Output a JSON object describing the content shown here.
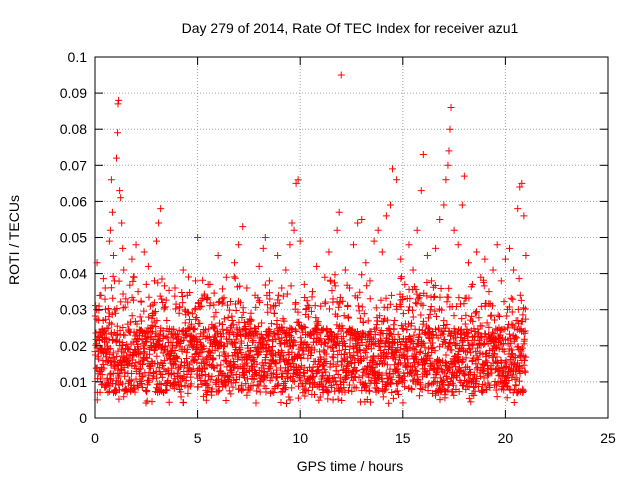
{
  "chart_data": {
    "type": "scatter",
    "title": "Day 279 of 2014, Rate Of TEC Index for receiver azu1",
    "xlabel": "GPS time / hours",
    "ylabel": "ROTI / TECUs",
    "xlim": [
      0,
      25
    ],
    "ylim": [
      0,
      0.1
    ],
    "xticks": [
      0,
      5,
      10,
      15,
      20,
      25
    ],
    "xtick_labels": [
      "0",
      "5",
      "10",
      "15",
      "20",
      "25"
    ],
    "yticks": [
      0,
      0.01,
      0.02,
      0.03,
      0.04,
      0.05,
      0.06,
      0.07,
      0.08,
      0.09,
      0.1
    ],
    "ytick_labels": [
      "0",
      "0.01",
      "0.02",
      "0.03",
      "0.04",
      "0.05",
      "0.06",
      "0.07",
      "0.08",
      "0.09",
      "0.1"
    ],
    "grid": true,
    "marker": "+",
    "color": "#ff0000",
    "x_range_of_data": [
      0,
      21
    ],
    "series": [
      {
        "points": [
          [
            0.1,
            0.043
          ],
          [
            0.2,
            0.031
          ],
          [
            0.3,
            0.018
          ],
          [
            0.35,
            0.012
          ],
          [
            0.4,
            0.027
          ],
          [
            0.5,
            0.036
          ],
          [
            0.55,
            0.022
          ],
          [
            0.6,
            0.011
          ],
          [
            0.7,
            0.049
          ],
          [
            0.75,
            0.052
          ],
          [
            0.8,
            0.066
          ],
          [
            0.85,
            0.057
          ],
          [
            0.9,
            0.045
          ],
          [
            0.95,
            0.038
          ],
          [
            1.0,
            0.029
          ],
          [
            1.05,
            0.072
          ],
          [
            1.1,
            0.079
          ],
          [
            1.12,
            0.087
          ],
          [
            1.15,
            0.088
          ],
          [
            1.2,
            0.063
          ],
          [
            1.25,
            0.061
          ],
          [
            1.3,
            0.054
          ],
          [
            1.35,
            0.047
          ],
          [
            1.4,
            0.041
          ],
          [
            1.5,
            0.033
          ],
          [
            1.6,
            0.026
          ],
          [
            1.7,
            0.019
          ],
          [
            1.8,
            0.044
          ],
          [
            1.9,
            0.039
          ],
          [
            2.0,
            0.048
          ],
          [
            2.1,
            0.035
          ],
          [
            2.2,
            0.028
          ],
          [
            2.4,
            0.046
          ],
          [
            2.5,
            0.037
          ],
          [
            2.6,
            0.042
          ],
          [
            2.7,
            0.031
          ],
          [
            2.8,
            0.024
          ],
          [
            2.9,
            0.038
          ],
          [
            3.0,
            0.049
          ],
          [
            3.1,
            0.054
          ],
          [
            3.2,
            0.058
          ],
          [
            3.3,
            0.032
          ],
          [
            3.5,
            0.027
          ],
          [
            3.7,
            0.021
          ],
          [
            3.9,
            0.036
          ],
          [
            4.1,
            0.029
          ],
          [
            4.3,
            0.041
          ],
          [
            4.5,
            0.034
          ],
          [
            4.7,
            0.026
          ],
          [
            4.9,
            0.038
          ],
          [
            5.0,
            0.05
          ],
          [
            5.2,
            0.031
          ],
          [
            5.4,
            0.022
          ],
          [
            5.6,
            0.037
          ],
          [
            5.8,
            0.028
          ],
          [
            6.0,
            0.045
          ],
          [
            6.2,
            0.033
          ],
          [
            6.4,
            0.039
          ],
          [
            6.6,
            0.025
          ],
          [
            6.8,
            0.043
          ],
          [
            7.0,
            0.048
          ],
          [
            7.2,
            0.053
          ],
          [
            7.4,
            0.036
          ],
          [
            7.6,
            0.029
          ],
          [
            7.8,
            0.034
          ],
          [
            8.0,
            0.042
          ],
          [
            8.2,
            0.047
          ],
          [
            8.3,
            0.05
          ],
          [
            8.5,
            0.038
          ],
          [
            8.7,
            0.031
          ],
          [
            8.9,
            0.045
          ],
          [
            9.1,
            0.036
          ],
          [
            9.3,
            0.041
          ],
          [
            9.5,
            0.048
          ],
          [
            9.6,
            0.054
          ],
          [
            9.7,
            0.052
          ],
          [
            9.8,
            0.065
          ],
          [
            9.9,
            0.066
          ],
          [
            10.0,
            0.049
          ],
          [
            10.2,
            0.037
          ],
          [
            10.4,
            0.028
          ],
          [
            10.6,
            0.035
          ],
          [
            10.8,
            0.042
          ],
          [
            11.0,
            0.031
          ],
          [
            11.2,
            0.039
          ],
          [
            11.4,
            0.046
          ],
          [
            11.6,
            0.033
          ],
          [
            11.8,
            0.052
          ],
          [
            11.9,
            0.057
          ],
          [
            12.0,
            0.095
          ],
          [
            12.2,
            0.041
          ],
          [
            12.4,
            0.036
          ],
          [
            12.6,
            0.048
          ],
          [
            12.8,
            0.054
          ],
          [
            13.0,
            0.055
          ],
          [
            13.2,
            0.043
          ],
          [
            13.4,
            0.038
          ],
          [
            13.6,
            0.049
          ],
          [
            13.8,
            0.052
          ],
          [
            14.0,
            0.046
          ],
          [
            14.2,
            0.056
          ],
          [
            14.4,
            0.059
          ],
          [
            14.5,
            0.069
          ],
          [
            14.7,
            0.066
          ],
          [
            14.9,
            0.044
          ],
          [
            15.1,
            0.037
          ],
          [
            15.3,
            0.048
          ],
          [
            15.5,
            0.041
          ],
          [
            15.7,
            0.052
          ],
          [
            15.9,
            0.063
          ],
          [
            16.0,
            0.073
          ],
          [
            16.2,
            0.045
          ],
          [
            16.4,
            0.038
          ],
          [
            16.6,
            0.047
          ],
          [
            16.8,
            0.055
          ],
          [
            17.0,
            0.059
          ],
          [
            17.1,
            0.066
          ],
          [
            17.2,
            0.07
          ],
          [
            17.25,
            0.074
          ],
          [
            17.3,
            0.08
          ],
          [
            17.35,
            0.086
          ],
          [
            17.5,
            0.052
          ],
          [
            17.7,
            0.048
          ],
          [
            17.9,
            0.059
          ],
          [
            18.0,
            0.067
          ],
          [
            18.2,
            0.043
          ],
          [
            18.4,
            0.037
          ],
          [
            18.6,
            0.046
          ],
          [
            18.8,
            0.039
          ],
          [
            19.0,
            0.044
          ],
          [
            19.2,
            0.035
          ],
          [
            19.4,
            0.041
          ],
          [
            19.6,
            0.048
          ],
          [
            19.8,
            0.038
          ],
          [
            20.0,
            0.044
          ],
          [
            20.2,
            0.047
          ],
          [
            20.4,
            0.041
          ],
          [
            20.6,
            0.058
          ],
          [
            20.7,
            0.064
          ],
          [
            20.8,
            0.065
          ],
          [
            20.9,
            0.056
          ],
          [
            21.0,
            0.045
          ]
        ]
      }
    ]
  }
}
